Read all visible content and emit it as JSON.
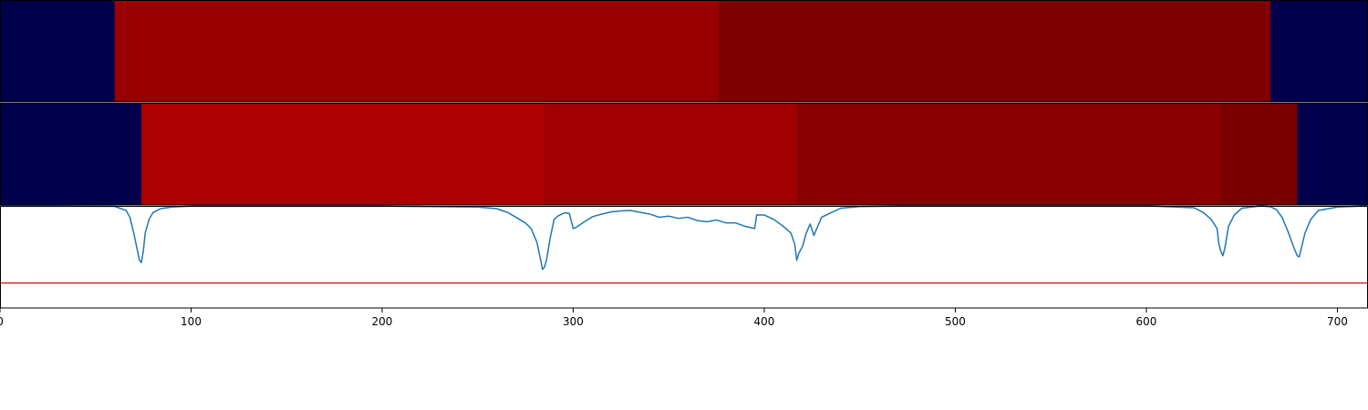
{
  "chart_data": [
    {
      "type": "heatmap",
      "segments": [
        {
          "start": 0,
          "end": 60,
          "color": "#00004c"
        },
        {
          "start": 60,
          "end": 376,
          "color": "#980000"
        },
        {
          "start": 376,
          "end": 665,
          "color": "#7f0000"
        },
        {
          "start": 665,
          "end": 716,
          "color": "#00004c"
        }
      ]
    },
    {
      "type": "heatmap",
      "segments": [
        {
          "start": 0,
          "end": 74,
          "color": "#00004c"
        },
        {
          "start": 74,
          "end": 285,
          "color": "#ae0000"
        },
        {
          "start": 285,
          "end": 417,
          "color": "#a00000"
        },
        {
          "start": 417,
          "end": 639,
          "color": "#8a0000"
        },
        {
          "start": 639,
          "end": 679,
          "color": "#7a0000"
        },
        {
          "start": 679,
          "end": 716,
          "color": "#00004c"
        }
      ]
    },
    {
      "type": "line",
      "xlim": [
        0,
        716
      ],
      "ylim": [
        -0.45,
        0.0
      ],
      "xticks": [
        0,
        100,
        200,
        300,
        400,
        500,
        600,
        700
      ],
      "xtick_labels": [
        "0",
        "100",
        "200",
        "300",
        "400",
        "500",
        "600",
        "700"
      ],
      "threshold": -0.34,
      "line_color": "#1f77b4",
      "threshold_color": "#d62728",
      "series": [
        {
          "x": [
            0,
            60,
            66,
            68,
            70,
            72,
            73,
            74,
            75,
            76,
            78,
            80,
            84,
            90,
            100,
            140,
            200,
            250,
            260,
            266,
            270,
            275,
            278,
            281,
            283,
            284,
            285,
            286,
            288,
            290,
            292,
            294,
            296,
            298,
            300,
            302,
            305,
            310,
            315,
            320,
            325,
            330,
            335,
            340,
            345,
            350,
            355,
            360,
            365,
            370,
            375,
            380,
            385,
            390,
            395,
            396,
            400,
            405,
            410,
            414,
            416,
            417,
            418,
            420,
            422,
            424,
            426,
            430,
            435,
            440,
            450,
            480,
            550,
            600,
            625,
            630,
            634,
            637,
            638,
            639,
            640,
            641,
            643,
            646,
            650,
            660,
            665,
            668,
            671,
            674,
            677,
            679,
            680,
            681,
            683,
            686,
            690,
            700,
            716
          ],
          "y": [
            0.0,
            -0.002,
            -0.02,
            -0.05,
            -0.12,
            -0.2,
            -0.24,
            -0.25,
            -0.2,
            -0.12,
            -0.06,
            -0.03,
            -0.012,
            -0.005,
            -0.001,
            0.0,
            -0.001,
            -0.005,
            -0.012,
            -0.03,
            -0.05,
            -0.075,
            -0.1,
            -0.16,
            -0.24,
            -0.28,
            -0.27,
            -0.24,
            -0.14,
            -0.06,
            -0.045,
            -0.036,
            -0.03,
            -0.033,
            -0.1,
            -0.092,
            -0.075,
            -0.048,
            -0.036,
            -0.026,
            -0.022,
            -0.02,
            -0.028,
            -0.036,
            -0.05,
            -0.045,
            -0.055,
            -0.05,
            -0.065,
            -0.07,
            -0.062,
            -0.075,
            -0.075,
            -0.09,
            -0.1,
            -0.04,
            -0.04,
            -0.06,
            -0.09,
            -0.12,
            -0.17,
            -0.24,
            -0.21,
            -0.18,
            -0.12,
            -0.08,
            -0.13,
            -0.05,
            -0.03,
            -0.01,
            -0.003,
            0.0,
            0.0,
            0.0,
            -0.008,
            -0.03,
            -0.06,
            -0.1,
            -0.17,
            -0.2,
            -0.22,
            -0.19,
            -0.09,
            -0.04,
            -0.01,
            0.0,
            -0.004,
            -0.016,
            -0.05,
            -0.11,
            -0.18,
            -0.22,
            -0.225,
            -0.19,
            -0.12,
            -0.06,
            -0.02,
            -0.005,
            0.0
          ]
        }
      ]
    }
  ]
}
